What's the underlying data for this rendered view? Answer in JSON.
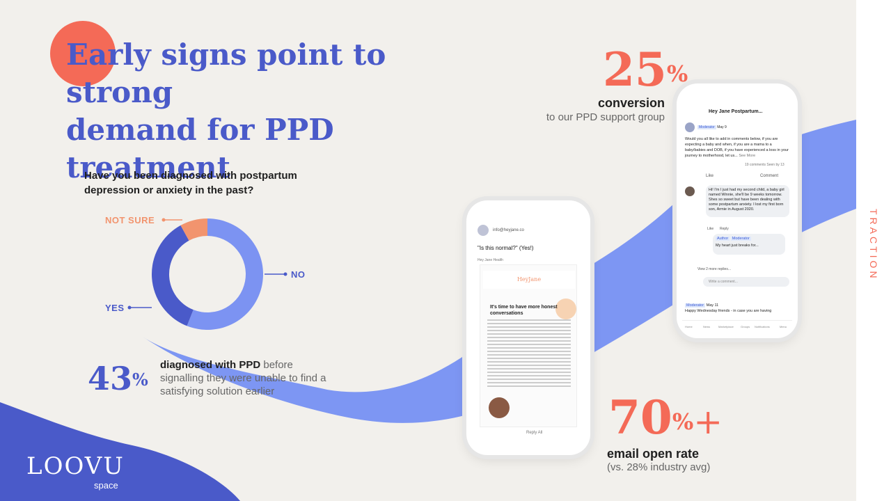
{
  "section_label": "TRACTION",
  "title": {
    "line1": "Early signs point to strong",
    "line2": "demand for PPD treatment"
  },
  "survey": {
    "question": "Have you been diagnosed with postpartum depression or anxiety in the past?",
    "labels": {
      "not_sure": "NOT SURE",
      "no": "NO",
      "yes": "YES"
    }
  },
  "stats": {
    "diagnosed": {
      "value": "43",
      "unit": "%",
      "bold": "diagnosed with PPD",
      "rest": "before signalling they were unable to find a satisfying solution earlier"
    },
    "conversion": {
      "value": "25",
      "unit": "%",
      "title": "conversion",
      "subtitle": "to our PPD support group"
    },
    "email": {
      "value": "70",
      "unit": "%",
      "suffix": "+",
      "title": "email open rate",
      "subtitle": "(vs. 28% industry avg)"
    }
  },
  "logo": {
    "name": "LOOVU",
    "sub": "space"
  },
  "email_phone": {
    "from": "info@heyjane.co",
    "subject": "\"Is this normal?\" (Yes!)",
    "sender": "Hey Jane Health",
    "brand": "HeyJane",
    "headline": "It's time to have more honest conversations",
    "reply": "Reply All"
  },
  "social_phone": {
    "group": "Hey Jane Postpartum...",
    "badge_moderator": "Moderator",
    "badge_author": "Author",
    "date1": "May 9",
    "post": "Would you all like to add in comments below, if you are expecting a baby and when, if you are a mama to a baby/babies and DOB, if you have experienced a loss in your journey to motherhood, let us...",
    "see_more": "See More",
    "comments_count": "19 comments",
    "seen_by": "Seen by 13",
    "like": "Like",
    "comment": "Comment",
    "comment1": "Hi! I'm I just had my second child, a baby girl named Winnie, she'll be 9 weeks tomorrow. Shes so sweet but have been dealing with some postpartum anxiety. I lost my first born son, Armie in August 2020.",
    "reply_label": "Reply",
    "reply1": "My heart just breaks for...",
    "more_replies": "View 2 more replies...",
    "write_placeholder": "Write a comment...",
    "date2": "May 11",
    "post2": "Happy Wednesday friends - in case you are having",
    "nav": [
      "Home",
      "News",
      "Marketplace",
      "Groups",
      "Notifications",
      "Menu"
    ]
  },
  "chart_data": {
    "type": "pie",
    "title": "Have you been diagnosed with postpartum depression or anxiety in the past?",
    "categories": [
      "NO",
      "YES",
      "NOT SURE"
    ],
    "values": [
      56,
      36,
      8
    ],
    "colors": [
      "#7c93f2",
      "#4a5ac9",
      "#f2946e"
    ]
  }
}
